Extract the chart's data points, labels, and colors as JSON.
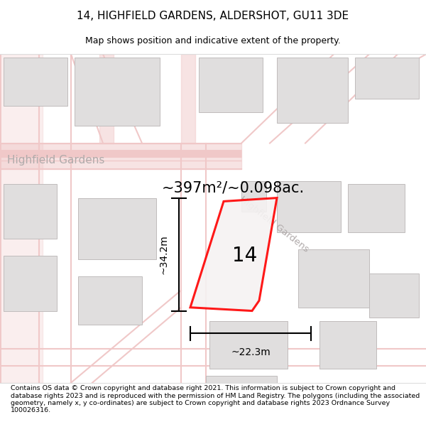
{
  "title": "14, HIGHFIELD GARDENS, ALDERSHOT, GU11 3DE",
  "subtitle": "Map shows position and indicative extent of the property.",
  "footer": "Contains OS data © Crown copyright and database right 2021. This information is subject to Crown copyright and database rights 2023 and is reproduced with the permission of HM Land Registry. The polygons (including the associated geometry, namely x, y co-ordinates) are subject to Crown copyright and database rights 2023 Ordnance Survey 100026316.",
  "area_label": "~397m²/~0.098ac.",
  "dimension_h": "~34.2m",
  "dimension_w": "~22.3m",
  "property_number": "14",
  "map_bg": "#f7f4f4",
  "road_color": "#f0c8c8",
  "building_color": "#e0dede",
  "building_outline": "#c0bcbc",
  "property_fill": "#f5f2f2",
  "street_label_color": "#b0aaaa",
  "title_fontsize": 11,
  "subtitle_fontsize": 9,
  "footer_fontsize": 6.8
}
